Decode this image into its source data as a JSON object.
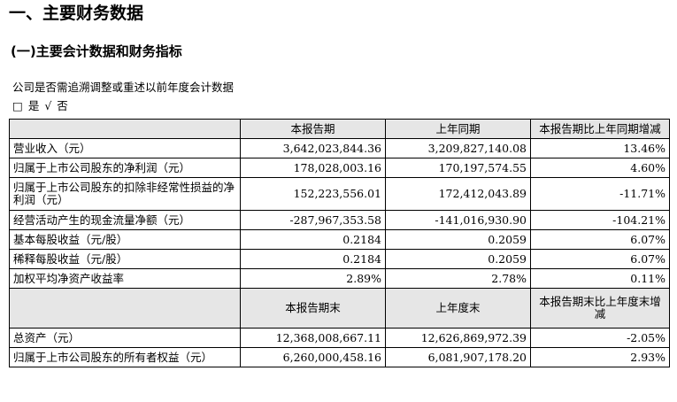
{
  "section_title": "一、主要财务数据",
  "subsection_title": "(一)主要会计数据和财务指标",
  "question": "公司是否需追溯调整或重述以前年度会计数据",
  "options": {
    "yes_box": "□",
    "yes_label": "是",
    "no_check": "√",
    "no_label": "否"
  },
  "table1": {
    "headers": [
      "",
      "本报告期",
      "上年同期",
      "本报告期比上年同期增减"
    ],
    "rows": [
      [
        "营业收入（元）",
        "3,642,023,844.36",
        "3,209,827,140.08",
        "13.46%"
      ],
      [
        "归属于上市公司股东的净利润（元）",
        "178,028,003.16",
        "170,197,574.55",
        "4.60%"
      ],
      [
        "归属于上市公司股东的扣除非经常性损益的净利润（元）",
        "152,223,556.01",
        "172,412,043.89",
        "-11.71%"
      ],
      [
        "经营活动产生的现金流量净额（元）",
        "-287,967,353.58",
        "-141,016,930.90",
        "-104.21%"
      ],
      [
        "基本每股收益（元/股）",
        "0.2184",
        "0.2059",
        "6.07%"
      ],
      [
        "稀释每股收益（元/股）",
        "0.2184",
        "0.2059",
        "6.07%"
      ],
      [
        "加权平均净资产收益率",
        "2.89%",
        "2.78%",
        "0.11%"
      ]
    ]
  },
  "table2": {
    "headers": [
      "",
      "本报告期末",
      "上年度末",
      "本报告期末比上年度末增减"
    ],
    "rows": [
      [
        "总资产（元）",
        "12,368,008,667.11",
        "12,626,869,972.39",
        "-2.05%"
      ],
      [
        "归属于上市公司股东的所有者权益（元）",
        "6,260,000,458.16",
        "6,081,907,178.20",
        "2.93%"
      ]
    ]
  }
}
